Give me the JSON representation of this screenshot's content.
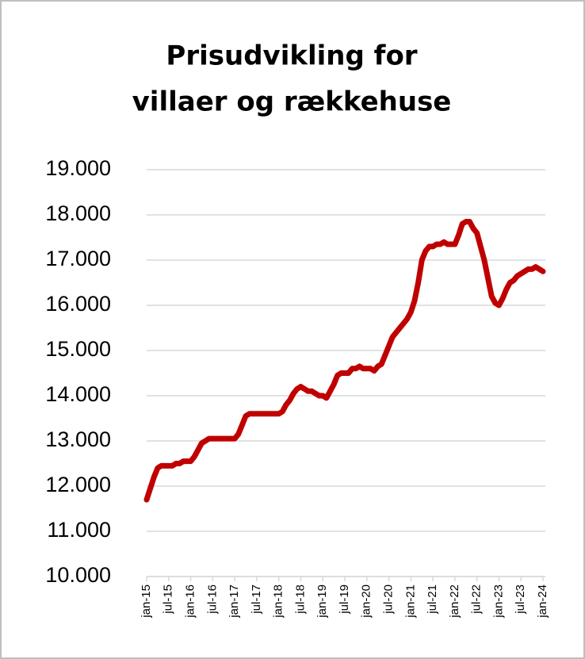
{
  "chart_data": {
    "type": "line",
    "title": [
      "Prisudvikling for",
      "villaer og rækkehuse"
    ],
    "categories": [
      "jan-15",
      null,
      null,
      null,
      null,
      null,
      "jul-15",
      null,
      null,
      null,
      null,
      null,
      "jan-16",
      null,
      null,
      null,
      null,
      null,
      "jul-16",
      null,
      null,
      null,
      null,
      null,
      "jan-17",
      null,
      null,
      null,
      null,
      null,
      "jul-17",
      null,
      null,
      null,
      null,
      null,
      "jan-18",
      null,
      null,
      null,
      null,
      null,
      "jul-18",
      null,
      null,
      null,
      null,
      null,
      "jan-19",
      null,
      null,
      null,
      null,
      null,
      "jul-19",
      null,
      null,
      null,
      null,
      null,
      "jan-20",
      null,
      null,
      null,
      null,
      null,
      "jul-20",
      null,
      null,
      null,
      null,
      null,
      "jan-21",
      null,
      null,
      null,
      null,
      null,
      "jul-21",
      null,
      null,
      null,
      null,
      null,
      "jan-22",
      null,
      null,
      null,
      null,
      null,
      "jul-22",
      null,
      null,
      null,
      null,
      null,
      "jan-23",
      null,
      null,
      null,
      null,
      null,
      "jul-23",
      null,
      null,
      null,
      null,
      null,
      "jan-24"
    ],
    "values": [
      11700,
      11950,
      12200,
      12400,
      12450,
      12450,
      12450,
      12450,
      12500,
      12500,
      12550,
      12550,
      12550,
      12650,
      12800,
      12950,
      13000,
      13050,
      13050,
      13050,
      13050,
      13050,
      13050,
      13050,
      13050,
      13150,
      13350,
      13550,
      13600,
      13600,
      13600,
      13600,
      13600,
      13600,
      13600,
      13600,
      13600,
      13650,
      13800,
      13900,
      14050,
      14150,
      14200,
      14150,
      14100,
      14100,
      14050,
      14000,
      14000,
      13950,
      14100,
      14250,
      14450,
      14500,
      14500,
      14500,
      14600,
      14600,
      14650,
      14600,
      14600,
      14600,
      14550,
      14650,
      14700,
      14900,
      15100,
      15300,
      15400,
      15500,
      15600,
      15700,
      15850,
      16100,
      16500,
      17000,
      17200,
      17300,
      17300,
      17350,
      17350,
      17400,
      17350,
      17350,
      17350,
      17550,
      17800,
      17850,
      17850,
      17700,
      17600,
      17300,
      17000,
      16600,
      16200,
      16050,
      16000,
      16150,
      16350,
      16500,
      16550,
      16650,
      16700,
      16750,
      16800,
      16800,
      16850,
      16800,
      16750
    ],
    "color": "#c00000",
    "ylim": [
      10000,
      19000
    ],
    "yticks": [
      {
        "value": 10000,
        "label": "10.000"
      },
      {
        "value": 11000,
        "label": "11.000"
      },
      {
        "value": 12000,
        "label": "12.000"
      },
      {
        "value": 13000,
        "label": "13.000"
      },
      {
        "value": 14000,
        "label": "14.000"
      },
      {
        "value": 15000,
        "label": "15.000"
      },
      {
        "value": 16000,
        "label": "16.000"
      },
      {
        "value": 17000,
        "label": "17.000"
      },
      {
        "value": 18000,
        "label": "18.000"
      },
      {
        "value": 19000,
        "label": "19.000"
      }
    ],
    "grid": true
  }
}
